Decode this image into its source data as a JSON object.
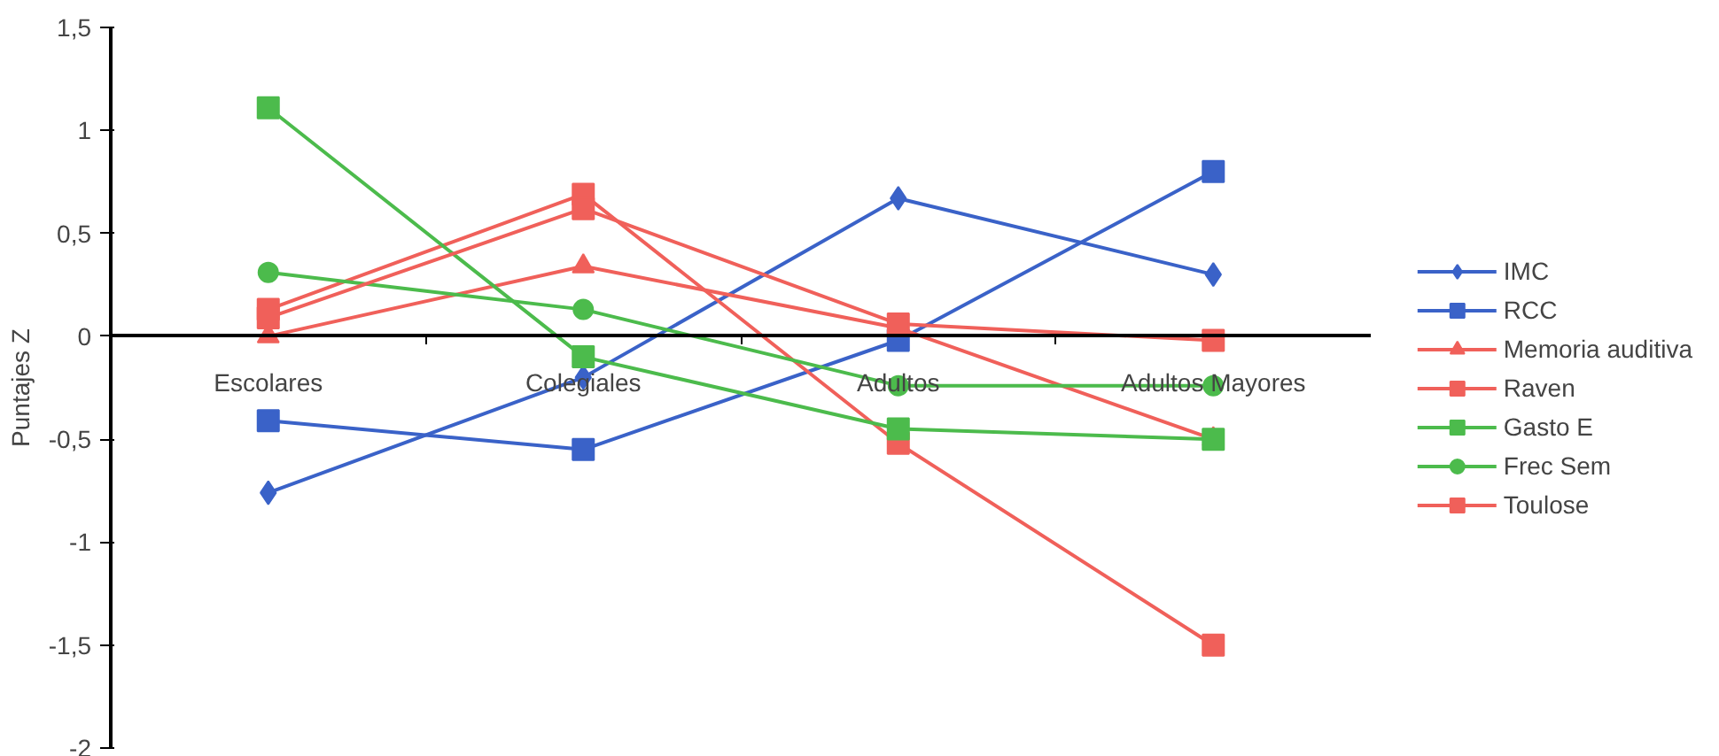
{
  "chart_data": {
    "type": "line",
    "ylabel": "Puntajes Z",
    "categories": [
      "Escolares",
      "Colegiales",
      "Adultos",
      "Adultos Mayores"
    ],
    "ylim": [
      -2,
      1.5
    ],
    "yticks": [
      {
        "value": 1.5,
        "label": "1,5"
      },
      1,
      {
        "value": 0.5,
        "label": "0,5"
      },
      0,
      {
        "value": -0.5,
        "label": "-0,5"
      },
      -1,
      {
        "value": -1.5,
        "label": "-1,5"
      },
      -2
    ],
    "grid": false,
    "legend": "right",
    "series": [
      {
        "name": "IMC",
        "color": "#3a62c8",
        "marker": "diamond",
        "values": [
          -0.76,
          -0.2,
          0.67,
          0.3
        ]
      },
      {
        "name": "RCC",
        "color": "#3a62c8",
        "marker": "square",
        "values": [
          -0.41,
          -0.55,
          -0.02,
          0.8
        ]
      },
      {
        "name": "Memoria auditiva",
        "color": "#f0605a",
        "marker": "triangle",
        "values": [
          0.0,
          0.34,
          0.04,
          -0.5
        ]
      },
      {
        "name": "Raven",
        "color": "#f0605a",
        "marker": "square",
        "values": [
          0.13,
          0.69,
          -0.52,
          -1.5
        ]
      },
      {
        "name": "Gasto E",
        "color": "#4cbb4c",
        "marker": "square",
        "values": [
          1.11,
          -0.1,
          -0.45,
          -0.5
        ]
      },
      {
        "name": "Frec Sem",
        "color": "#4cbb4c",
        "marker": "circle",
        "values": [
          0.31,
          0.13,
          -0.24,
          -0.24
        ]
      },
      {
        "name": "Toulose",
        "color": "#f0605a",
        "marker": "square",
        "values": [
          0.09,
          0.62,
          0.06,
          -0.02
        ]
      }
    ]
  }
}
